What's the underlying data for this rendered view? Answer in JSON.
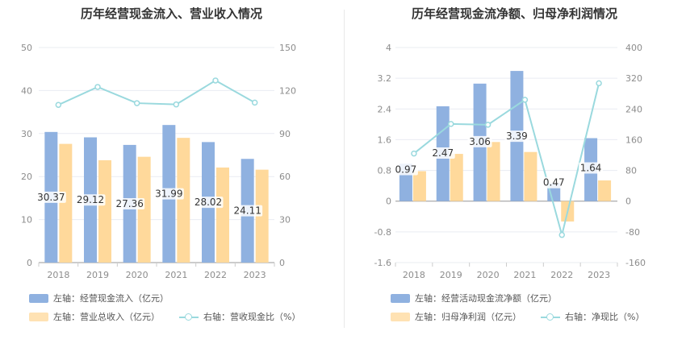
{
  "colors": {
    "bar_primary": "#8fb1e0",
    "bar_secondary": "#ffd99b",
    "line": "#9ad9de",
    "axis_text": "#8c8c8c",
    "grid": "#e9ecf2",
    "title": "#333333"
  },
  "chart_data": [
    {
      "type": "bar",
      "title": "历年经营现金流入、营业收入情况",
      "categories": [
        "2018",
        "2019",
        "2020",
        "2021",
        "2022",
        "2023"
      ],
      "y_left": {
        "min": 0,
        "max": 50,
        "ticks": [
          "0",
          "10",
          "20",
          "30",
          "40",
          "50"
        ]
      },
      "y_right": {
        "min": 0,
        "max": 150,
        "ticks": [
          "0",
          "30",
          "60",
          "90",
          "120",
          "150"
        ]
      },
      "grid": true,
      "legend_position": "bottom-left",
      "series": [
        {
          "name": "左轴：经营现金流入（亿元）",
          "kind": "bar",
          "axis": "left",
          "values": [
            30.37,
            29.12,
            27.36,
            31.99,
            28.02,
            24.11
          ],
          "labels": [
            "30.37",
            "29.12",
            "27.36",
            "31.99",
            "28.02",
            "24.11"
          ]
        },
        {
          "name": "左轴：营业总收入（亿元）",
          "kind": "bar",
          "axis": "left",
          "values": [
            27.6,
            23.8,
            24.6,
            29.0,
            22.1,
            21.6
          ]
        },
        {
          "name": "右轴：营收现金比（%）",
          "kind": "line",
          "axis": "right",
          "values": [
            110.0,
            122.5,
            111.2,
            110.3,
            127.0,
            111.6
          ]
        }
      ]
    },
    {
      "type": "bar",
      "title": "历年经营现金流净额、归母净利润情况",
      "categories": [
        "2018",
        "2019",
        "2020",
        "2021",
        "2022",
        "2023"
      ],
      "y_left": {
        "min": -1.6,
        "max": 4,
        "ticks": [
          "-1.6",
          "-0.8",
          "0",
          "0.8",
          "1.6",
          "2.4",
          "3.2",
          "4"
        ]
      },
      "y_right": {
        "min": -160,
        "max": 400,
        "ticks": [
          "-160",
          "-80",
          "0",
          "80",
          "160",
          "240",
          "320",
          "400"
        ]
      },
      "grid": true,
      "legend_position": "bottom-left",
      "series": [
        {
          "name": "左轴：经营活动现金流净额（亿元）",
          "kind": "bar",
          "axis": "left",
          "values": [
            0.97,
            2.47,
            3.06,
            3.39,
            0.47,
            1.64
          ],
          "labels": [
            "0.97",
            "2.47",
            "3.06",
            "3.39",
            "0.47",
            "1.64"
          ]
        },
        {
          "name": "左轴：归母净利润（亿元）",
          "kind": "bar",
          "axis": "left",
          "values": [
            0.78,
            1.23,
            1.54,
            1.28,
            -0.53,
            0.54
          ]
        },
        {
          "name": "右轴：净现比（%）",
          "kind": "line",
          "axis": "right",
          "values": [
            124,
            201,
            199,
            264,
            -88,
            307
          ]
        }
      ]
    }
  ]
}
